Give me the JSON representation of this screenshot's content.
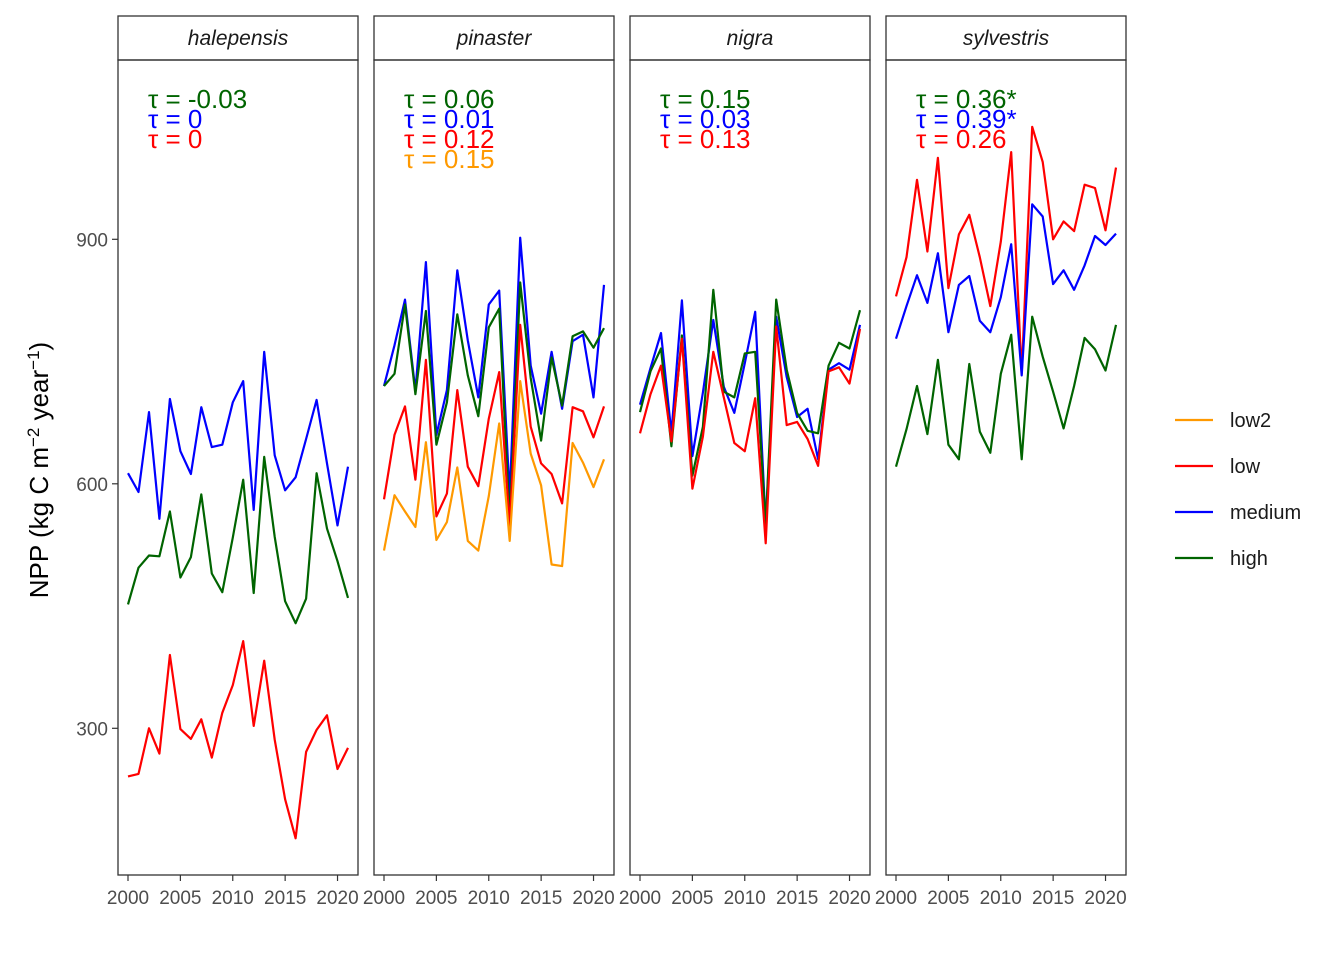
{
  "chart_data": {
    "type": "line",
    "ylabel": "NPP (kg C m^-2 year^-1)",
    "ylabel_parts": {
      "base": "NPP (kg C m",
      "exp1": "−2",
      "mid": " year",
      "exp2": "−1",
      "end": ")"
    },
    "x": [
      2000,
      2001,
      2002,
      2003,
      2004,
      2005,
      2006,
      2007,
      2008,
      2009,
      2010,
      2011,
      2012,
      2013,
      2014,
      2015,
      2016,
      2017,
      2018,
      2019,
      2020,
      2021
    ],
    "xticks": [
      2000,
      2005,
      2010,
      2015,
      2020
    ],
    "xtick_labels": [
      "2000",
      "2005",
      "2010",
      "2015",
      "2020"
    ],
    "xlim": [
      1999,
      2022
    ],
    "ylim": [
      120,
      1120
    ],
    "yticks": [
      300,
      600,
      900
    ],
    "ytick_labels": [
      "300",
      "600",
      "900"
    ],
    "grid": false,
    "legend": {
      "position": "right",
      "items": [
        {
          "key": "low2",
          "label": "low2",
          "color": "#FF9900"
        },
        {
          "key": "low",
          "label": "low",
          "color": "#FF0000"
        },
        {
          "key": "medium",
          "label": "medium",
          "color": "#0000FF"
        },
        {
          "key": "high",
          "label": "high",
          "color": "#006400"
        }
      ]
    },
    "panels": [
      {
        "title": "halepensis",
        "tau": [
          {
            "series": "high",
            "label": "τ = -0.03"
          },
          {
            "series": "medium",
            "label": "τ = 0"
          },
          {
            "series": "low",
            "label": "τ = 0"
          }
        ],
        "series": [
          {
            "name": "medium",
            "values": [
              613,
              590,
              688,
              557,
              704,
              640,
              612,
              694,
              645,
              648,
              700,
              726,
              568,
              762,
              635,
              592,
              608,
              655,
              703,
              625,
              549,
              621
            ]
          },
          {
            "name": "high",
            "values": [
              452,
              497,
              512,
              511,
              566,
              485,
              510,
              587,
              490,
              467,
              534,
              605,
              466,
              633,
              535,
              456,
              429,
              459,
              613,
              545,
              505,
              460
            ]
          },
          {
            "name": "low",
            "values": [
              241,
              244,
              300,
              269,
              390,
              299,
              287,
              311,
              264,
              319,
              353,
              407,
              303,
              383,
              286,
              213,
              165,
              271,
              298,
              316,
              250,
              276
            ]
          }
        ]
      },
      {
        "title": "pinaster",
        "tau": [
          {
            "series": "high",
            "label": "τ = 0.06"
          },
          {
            "series": "medium",
            "label": "τ = 0.01"
          },
          {
            "series": "low",
            "label": "τ = 0.12"
          },
          {
            "series": "low2",
            "label": "τ = 0.15"
          }
        ],
        "series": [
          {
            "name": "medium",
            "values": [
              720,
              770,
              826,
              714,
              872,
              660,
              715,
              862,
              776,
              706,
              820,
              837,
              585,
              902,
              745,
              686,
              762,
              692,
              775,
              783,
              706,
              844
            ]
          },
          {
            "name": "high",
            "values": [
              720,
              735,
              820,
              710,
              812,
              648,
              700,
              808,
              733,
              683,
              792,
              815,
              555,
              847,
              730,
              653,
              755,
              696,
              781,
              787,
              767,
              791
            ]
          },
          {
            "name": "low",
            "values": [
              581,
              660,
              695,
              605,
              752,
              560,
              588,
              715,
              621,
              597,
              680,
              737,
              548,
              795,
              670,
              625,
              612,
              576,
              694,
              689,
              657,
              695
            ]
          },
          {
            "name": "low2",
            "values": [
              518,
              586,
              566,
              547,
              651,
              531,
              553,
              620,
              530,
              518,
              585,
              674,
              530,
              726,
              637,
              598,
              501,
              499,
              650,
              626,
              596,
              630
            ]
          }
        ]
      },
      {
        "title": "nigra",
        "tau": [
          {
            "series": "high",
            "label": "τ = 0.15"
          },
          {
            "series": "medium",
            "label": "τ = 0.03"
          },
          {
            "series": "low",
            "label": "τ = 0.13"
          }
        ],
        "series": [
          {
            "name": "medium",
            "values": [
              697,
              742,
              785,
              662,
              825,
              634,
              712,
              801,
              719,
              687,
              748,
              811,
              550,
              805,
              731,
              682,
              692,
              630,
              740,
              748,
              740,
              795
            ]
          },
          {
            "name": "high",
            "values": [
              688,
              738,
              766,
              646,
              782,
              610,
              670,
              838,
              713,
              706,
              760,
              762,
              550,
              826,
              740,
              687,
              665,
              662,
              745,
              773,
              766,
              813
            ]
          },
          {
            "name": "low",
            "values": [
              662,
              710,
              745,
              652,
              778,
              594,
              658,
              762,
              706,
              650,
              640,
              705,
              527,
              793,
              672,
              676,
              655,
              622,
              738,
              743,
              723,
              790
            ]
          }
        ]
      },
      {
        "title": "sylvestris",
        "tau": [
          {
            "series": "high",
            "label": "τ = 0.36*"
          },
          {
            "series": "medium",
            "label": "τ = 0.39*"
          },
          {
            "series": "low",
            "label": "τ = 0.26"
          }
        ],
        "series": [
          {
            "name": "low",
            "values": [
              830,
              878,
              973,
              885,
              1000,
              840,
              906,
              930,
              878,
              818,
              897,
              1007,
              735,
              1038,
              995,
              900,
              922,
              910,
              967,
              963,
              911,
              988
            ]
          },
          {
            "name": "medium",
            "values": [
              778,
              818,
              856,
              822,
              883,
              786,
              844,
              855,
              800,
              786,
              829,
              894,
              733,
              943,
              928,
              845,
              862,
              838,
              868,
              904,
              893,
              907
            ]
          },
          {
            "name": "high",
            "values": [
              621,
              667,
              720,
              661,
              752,
              648,
              630,
              747,
              664,
              638,
              735,
              783,
              630,
              805,
              756,
              713,
              668,
              720,
              779,
              765,
              739,
              795
            ]
          }
        ]
      }
    ]
  }
}
